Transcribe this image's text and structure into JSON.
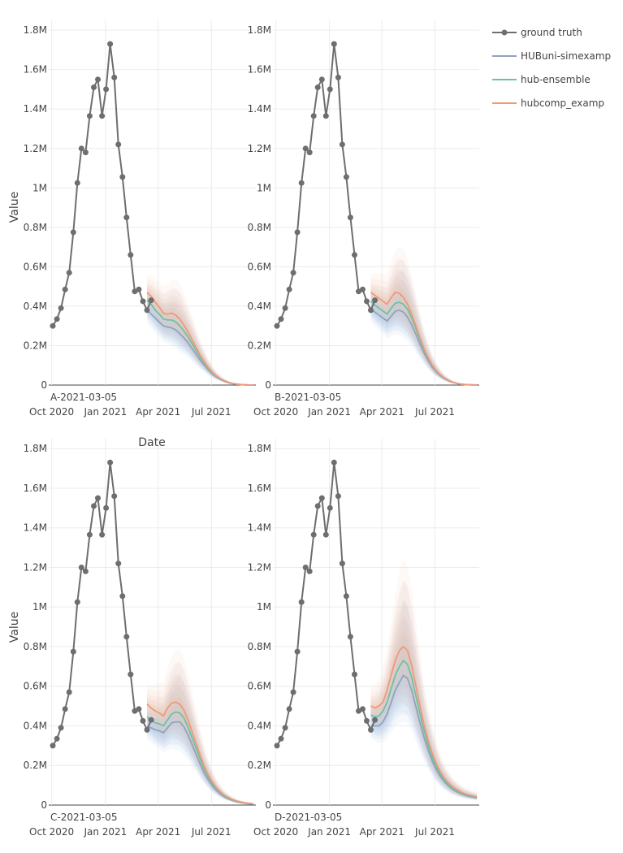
{
  "figure": {
    "ylabel": "Value",
    "xlabel": "Date"
  },
  "legend": {
    "placement": "top-right",
    "items": [
      {
        "label": "ground truth",
        "color": "#6e6e6e",
        "marker": true
      },
      {
        "label": "HUBuni-simexamp",
        "color": "#8fa3bf",
        "marker": false
      },
      {
        "label": "hub-ensemble",
        "color": "#6cc3a0",
        "marker": false
      },
      {
        "label": "hubcomp_examp",
        "color": "#ee9a79",
        "marker": false
      }
    ]
  },
  "colors": {
    "grid": "#ececec",
    "axis": "#444444",
    "truth": "#6e6e6e",
    "band_blue": "#a8c5e6",
    "band_orange": "#f6c0a4"
  },
  "chart_data": [
    {
      "type": "line",
      "panel_label": "A-2021-03-05",
      "x_ticks": [
        "Oct 2020",
        "Jan 2021",
        "Apr 2021",
        "Jul 2021"
      ],
      "x_tick_dates": [
        "2020-10-01",
        "2021-01-01",
        "2021-04-01",
        "2021-07-01"
      ],
      "y_ticks": [
        "0",
        "0.2M",
        "0.4M",
        "0.6M",
        "0.8M",
        "1M",
        "1.2M",
        "1.4M",
        "1.6M",
        "1.8M"
      ],
      "ylim": [
        0,
        1850000
      ],
      "xlim": [
        "2020-09-26",
        "2021-09-15"
      ],
      "ground_truth": {
        "name": "ground truth",
        "x": [
          "2020-10-03",
          "2020-10-10",
          "2020-10-17",
          "2020-10-24",
          "2020-10-31",
          "2020-11-07",
          "2020-11-14",
          "2020-11-21",
          "2020-11-28",
          "2020-12-05",
          "2020-12-12",
          "2020-12-19",
          "2020-12-26",
          "2021-01-02",
          "2021-01-09",
          "2021-01-16",
          "2021-01-23",
          "2021-01-30",
          "2021-02-06",
          "2021-02-13",
          "2021-02-20",
          "2021-02-27",
          "2021-03-06",
          "2021-03-13",
          "2021-03-20"
        ],
        "y": [
          300000,
          335000,
          390000,
          485000,
          570000,
          775000,
          1025000,
          1200000,
          1180000,
          1365000,
          1510000,
          1550000,
          1365000,
          1500000,
          1730000,
          1560000,
          1220000,
          1055000,
          850000,
          660000,
          475000,
          485000,
          425000,
          380000,
          430000
        ]
      },
      "forecast_x": [
        "2021-03-13",
        "2021-03-20",
        "2021-03-27",
        "2021-04-03",
        "2021-04-10",
        "2021-04-17",
        "2021-04-24",
        "2021-05-01",
        "2021-05-08",
        "2021-05-15",
        "2021-05-22",
        "2021-05-29",
        "2021-06-05",
        "2021-06-12",
        "2021-06-19",
        "2021-06-26",
        "2021-07-03",
        "2021-07-10",
        "2021-07-17",
        "2021-07-24",
        "2021-07-31",
        "2021-08-07",
        "2021-08-14",
        "2021-08-21",
        "2021-08-28",
        "2021-09-04",
        "2021-09-11"
      ],
      "series": [
        {
          "name": "HUBuni-simexamp",
          "values": [
            380000,
            360000,
            340000,
            320000,
            300000,
            295000,
            290000,
            280000,
            260000,
            240000,
            215000,
            185000,
            155000,
            125000,
            100000,
            75000,
            55000,
            40000,
            28000,
            18000,
            11000,
            7000,
            4000,
            2000,
            1000,
            500,
            200
          ]
        },
        {
          "name": "hub-ensemble",
          "values": [
            430000,
            410000,
            380000,
            360000,
            335000,
            330000,
            330000,
            320000,
            300000,
            275000,
            245000,
            210000,
            175000,
            140000,
            110000,
            82000,
            60000,
            43000,
            30000,
            20000,
            12000,
            8000,
            4500,
            2500,
            1200,
            600,
            300
          ]
        },
        {
          "name": "hubcomp_examp",
          "values": [
            470000,
            450000,
            420000,
            395000,
            365000,
            360000,
            365000,
            355000,
            335000,
            305000,
            270000,
            230000,
            190000,
            150000,
            118000,
            88000,
            64000,
            45000,
            31000,
            21000,
            13000,
            8000,
            5000,
            2500,
            1200,
            600,
            300
          ]
        }
      ]
    },
    {
      "type": "line",
      "panel_label": "B-2021-03-05",
      "x_ticks": [
        "Oct 2020",
        "Jan 2021",
        "Apr 2021",
        "Jul 2021"
      ],
      "x_tick_dates": [
        "2020-10-01",
        "2021-01-01",
        "2021-04-01",
        "2021-07-01"
      ],
      "y_ticks": [
        "0",
        "0.2M",
        "0.4M",
        "0.6M",
        "0.8M",
        "1M",
        "1.2M",
        "1.4M",
        "1.6M",
        "1.8M"
      ],
      "ylim": [
        0,
        1850000
      ],
      "xlim": [
        "2020-09-26",
        "2021-09-15"
      ],
      "ground_truth": {
        "name": "ground truth",
        "x": [
          "2020-10-03",
          "2020-10-10",
          "2020-10-17",
          "2020-10-24",
          "2020-10-31",
          "2020-11-07",
          "2020-11-14",
          "2020-11-21",
          "2020-11-28",
          "2020-12-05",
          "2020-12-12",
          "2020-12-19",
          "2020-12-26",
          "2021-01-02",
          "2021-01-09",
          "2021-01-16",
          "2021-01-23",
          "2021-01-30",
          "2021-02-06",
          "2021-02-13",
          "2021-02-20",
          "2021-02-27",
          "2021-03-06",
          "2021-03-13",
          "2021-03-20"
        ],
        "y": [
          300000,
          335000,
          390000,
          485000,
          570000,
          775000,
          1025000,
          1200000,
          1180000,
          1365000,
          1510000,
          1550000,
          1365000,
          1500000,
          1730000,
          1560000,
          1220000,
          1055000,
          850000,
          660000,
          475000,
          485000,
          425000,
          380000,
          430000
        ]
      },
      "forecast_x": [
        "2021-03-13",
        "2021-03-20",
        "2021-03-27",
        "2021-04-03",
        "2021-04-10",
        "2021-04-17",
        "2021-04-24",
        "2021-05-01",
        "2021-05-08",
        "2021-05-15",
        "2021-05-22",
        "2021-05-29",
        "2021-06-05",
        "2021-06-12",
        "2021-06-19",
        "2021-06-26",
        "2021-07-03",
        "2021-07-10",
        "2021-07-17",
        "2021-07-24",
        "2021-07-31",
        "2021-08-07",
        "2021-08-14",
        "2021-08-21",
        "2021-08-28",
        "2021-09-04",
        "2021-09-11"
      ],
      "series": [
        {
          "name": "HUBuni-simexamp",
          "values": [
            385000,
            370000,
            355000,
            340000,
            325000,
            350000,
            375000,
            380000,
            370000,
            345000,
            305000,
            260000,
            210000,
            165000,
            125000,
            92000,
            67000,
            48000,
            33000,
            22000,
            14000,
            8500,
            5000,
            2800,
            1400,
            700,
            300
          ]
        },
        {
          "name": "hub-ensemble",
          "values": [
            425000,
            405000,
            390000,
            375000,
            360000,
            390000,
            415000,
            420000,
            410000,
            385000,
            340000,
            288000,
            233000,
            182000,
            138000,
            101000,
            73000,
            52000,
            36000,
            24000,
            15000,
            9200,
            5400,
            3000,
            1500,
            800,
            300
          ]
        },
        {
          "name": "hubcomp_examp",
          "values": [
            470000,
            455000,
            440000,
            425000,
            410000,
            445000,
            470000,
            465000,
            445000,
            410000,
            360000,
            302000,
            243000,
            188000,
            142000,
            103000,
            74000,
            53000,
            36000,
            24000,
            15000,
            9200,
            5400,
            3000,
            1500,
            800,
            300
          ]
        }
      ]
    },
    {
      "type": "line",
      "panel_label": "C-2021-03-05",
      "x_ticks": [
        "Oct 2020",
        "Jan 2021",
        "Apr 2021",
        "Jul 2021"
      ],
      "x_tick_dates": [
        "2020-10-01",
        "2021-01-01",
        "2021-04-01",
        "2021-07-01"
      ],
      "y_ticks": [
        "0",
        "0.2M",
        "0.4M",
        "0.6M",
        "0.8M",
        "1M",
        "1.2M",
        "1.4M",
        "1.6M",
        "1.8M"
      ],
      "ylim": [
        0,
        1850000
      ],
      "xlim": [
        "2020-09-26",
        "2021-09-15"
      ],
      "ground_truth": {
        "name": "ground truth",
        "x": [
          "2020-10-03",
          "2020-10-10",
          "2020-10-17",
          "2020-10-24",
          "2020-10-31",
          "2020-11-07",
          "2020-11-14",
          "2020-11-21",
          "2020-11-28",
          "2020-12-05",
          "2020-12-12",
          "2020-12-19",
          "2020-12-26",
          "2021-01-02",
          "2021-01-09",
          "2021-01-16",
          "2021-01-23",
          "2021-01-30",
          "2021-02-06",
          "2021-02-13",
          "2021-02-20",
          "2021-02-27",
          "2021-03-06",
          "2021-03-13",
          "2021-03-20"
        ],
        "y": [
          300000,
          335000,
          390000,
          485000,
          570000,
          775000,
          1025000,
          1200000,
          1180000,
          1365000,
          1510000,
          1550000,
          1365000,
          1500000,
          1730000,
          1560000,
          1220000,
          1055000,
          850000,
          660000,
          475000,
          485000,
          425000,
          380000,
          430000
        ]
      },
      "forecast_x": [
        "2021-03-13",
        "2021-03-20",
        "2021-03-27",
        "2021-04-03",
        "2021-04-10",
        "2021-04-17",
        "2021-04-24",
        "2021-05-01",
        "2021-05-08",
        "2021-05-15",
        "2021-05-22",
        "2021-05-29",
        "2021-06-05",
        "2021-06-12",
        "2021-06-19",
        "2021-06-26",
        "2021-07-03",
        "2021-07-10",
        "2021-07-17",
        "2021-07-24",
        "2021-07-31",
        "2021-08-07",
        "2021-08-14",
        "2021-08-21",
        "2021-08-28",
        "2021-09-04",
        "2021-09-11"
      ],
      "series": [
        {
          "name": "HUBuni-simexamp",
          "values": [
            395000,
            390000,
            380000,
            375000,
            365000,
            390000,
            415000,
            420000,
            420000,
            395000,
            355000,
            305000,
            255000,
            205000,
            160000,
            125000,
            95000,
            72000,
            54000,
            40000,
            30000,
            22000,
            16000,
            12000,
            9000,
            7000,
            5000
          ]
        },
        {
          "name": "hub-ensemble",
          "values": [
            445000,
            430000,
            415000,
            410000,
            400000,
            430000,
            460000,
            470000,
            465000,
            440000,
            395000,
            340000,
            285000,
            230000,
            180000,
            140000,
            107000,
            81000,
            61000,
            45000,
            34000,
            25000,
            18000,
            13500,
            10000,
            8000,
            6000
          ]
        },
        {
          "name": "hubcomp_examp",
          "values": [
            510000,
            490000,
            475000,
            465000,
            450000,
            490000,
            515000,
            520000,
            510000,
            480000,
            430000,
            370000,
            310000,
            250000,
            195000,
            150000,
            115000,
            87000,
            65000,
            48000,
            36000,
            27000,
            20000,
            15000,
            11000,
            8500,
            6500
          ]
        }
      ]
    },
    {
      "type": "line",
      "panel_label": "D-2021-03-05",
      "x_ticks": [
        "Oct 2020",
        "Jan 2021",
        "Apr 2021",
        "Jul 2021"
      ],
      "x_tick_dates": [
        "2020-10-01",
        "2021-01-01",
        "2021-04-01",
        "2021-07-01"
      ],
      "y_ticks": [
        "0",
        "0.2M",
        "0.4M",
        "0.6M",
        "0.8M",
        "1M",
        "1.2M",
        "1.4M",
        "1.6M",
        "1.8M"
      ],
      "ylim": [
        0,
        1850000
      ],
      "xlim": [
        "2020-09-26",
        "2021-09-15"
      ],
      "ground_truth": {
        "name": "ground truth",
        "x": [
          "2020-10-03",
          "2020-10-10",
          "2020-10-17",
          "2020-10-24",
          "2020-10-31",
          "2020-11-07",
          "2020-11-14",
          "2020-11-21",
          "2020-11-28",
          "2020-12-05",
          "2020-12-12",
          "2020-12-19",
          "2020-12-26",
          "2021-01-02",
          "2021-01-09",
          "2021-01-16",
          "2021-01-23",
          "2021-01-30",
          "2021-02-06",
          "2021-02-13",
          "2021-02-20",
          "2021-02-27",
          "2021-03-06",
          "2021-03-13",
          "2021-03-20"
        ],
        "y": [
          300000,
          335000,
          390000,
          485000,
          570000,
          775000,
          1025000,
          1200000,
          1180000,
          1365000,
          1510000,
          1550000,
          1365000,
          1500000,
          1730000,
          1560000,
          1220000,
          1055000,
          850000,
          660000,
          475000,
          485000,
          425000,
          380000,
          430000
        ]
      },
      "forecast_x": [
        "2021-03-13",
        "2021-03-20",
        "2021-03-27",
        "2021-04-03",
        "2021-04-10",
        "2021-04-17",
        "2021-04-24",
        "2021-05-01",
        "2021-05-08",
        "2021-05-15",
        "2021-05-22",
        "2021-05-29",
        "2021-06-05",
        "2021-06-12",
        "2021-06-19",
        "2021-06-26",
        "2021-07-03",
        "2021-07-10",
        "2021-07-17",
        "2021-07-24",
        "2021-07-31",
        "2021-08-07",
        "2021-08-14",
        "2021-08-21",
        "2021-08-28",
        "2021-09-04",
        "2021-09-11"
      ],
      "series": [
        {
          "name": "HUBuni-simexamp",
          "values": [
            400000,
            400000,
            400000,
            420000,
            460000,
            520000,
            580000,
            620000,
            655000,
            640000,
            580000,
            500000,
            420000,
            345000,
            280000,
            225000,
            180000,
            145000,
            118000,
            97000,
            80000,
            68000,
            58000,
            50000,
            44000,
            40000,
            36000
          ]
        },
        {
          "name": "hub-ensemble",
          "values": [
            455000,
            445000,
            450000,
            475000,
            520000,
            590000,
            655000,
            700000,
            730000,
            710000,
            645000,
            555000,
            465000,
            380000,
            305000,
            245000,
            196000,
            157000,
            127000,
            104000,
            86000,
            73000,
            62000,
            54000,
            48000,
            43000,
            39000
          ]
        },
        {
          "name": "hubcomp_examp",
          "values": [
            500000,
            490000,
            500000,
            520000,
            580000,
            660000,
            730000,
            780000,
            800000,
            780000,
            705000,
            605000,
            505000,
            410000,
            330000,
            265000,
            212000,
            170000,
            137000,
            112000,
            93000,
            79000,
            67000,
            58000,
            51000,
            46000,
            42000
          ]
        }
      ]
    }
  ]
}
